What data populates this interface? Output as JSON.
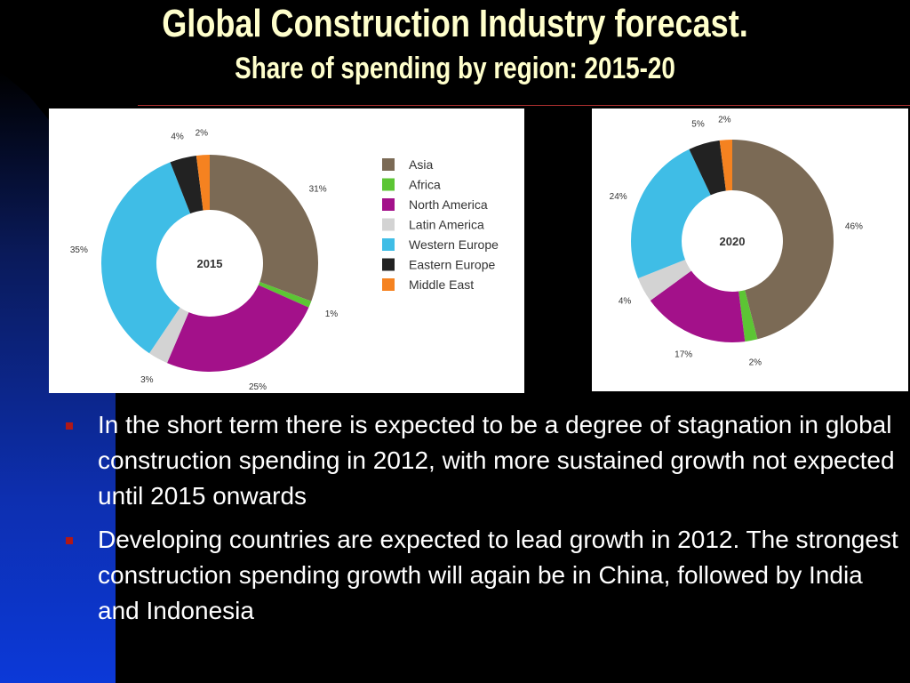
{
  "slide": {
    "title": "Global Construction Industry forecast.",
    "subtitle": "Share of spending by region: 2015-20"
  },
  "bullets": [
    "In the  short term there is expected to be a degree of stagnation in global construction spending in 2012, with more sustained growth not expected until  2015 onwards",
    "Developing countries are expected to lead growth in 2012. The strongest construction spending growth will again be in China, followed by India and  Indonesia"
  ],
  "chart_data": [
    {
      "type": "pie",
      "center_label": "2015",
      "categories": [
        "Asia",
        "Africa",
        "North America",
        "Latin America",
        "Western Europe",
        "Eastern Europe",
        "Middle East"
      ],
      "values": [
        31,
        1,
        25,
        3,
        35,
        4,
        2
      ],
      "value_labels": [
        "31%",
        "1%",
        "25%",
        "3%",
        "35%",
        "4%",
        "2%"
      ],
      "colors": [
        "#7b6a55",
        "#5cc534",
        "#a3118a",
        "#d3d3d3",
        "#3fbde6",
        "#222222",
        "#f58220"
      ],
      "legend": "right"
    },
    {
      "type": "pie",
      "center_label": "2020",
      "categories": [
        "Asia",
        "Africa",
        "North America",
        "Latin America",
        "Western Europe",
        "Eastern Europe",
        "Middle East"
      ],
      "values": [
        46,
        2,
        17,
        4,
        24,
        5,
        2
      ],
      "value_labels": [
        "46%",
        "2%",
        "17%",
        "4%",
        "24%",
        "5%",
        "2%"
      ],
      "colors": [
        "#7b6a55",
        "#5cc534",
        "#a3118a",
        "#d3d3d3",
        "#3fbde6",
        "#222222",
        "#f58220"
      ],
      "legend": "none"
    }
  ]
}
